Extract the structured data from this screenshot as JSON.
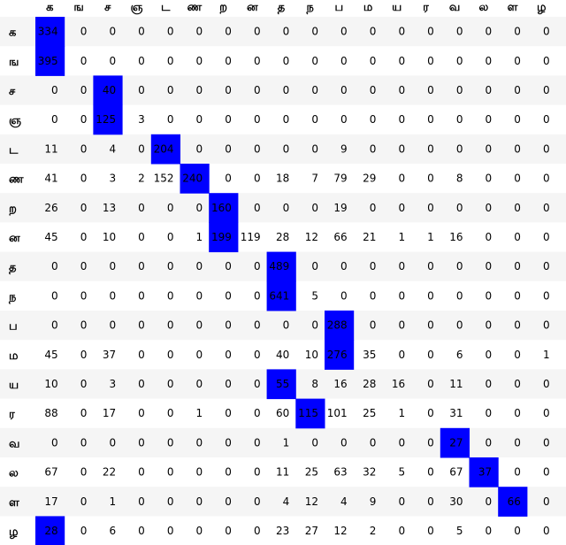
{
  "chart_data": {
    "type": "table",
    "highlight_color": "#0000ff",
    "stripe_color": "#f5f5f5",
    "columns": [
      "க",
      "ங",
      "ச",
      "ஞ",
      "ட",
      "ண",
      "ற",
      "ன",
      "த",
      "ந",
      "ப",
      "ம",
      "ய",
      "ர",
      "வ",
      "ல",
      "ள",
      "ழ"
    ],
    "rows": [
      "க",
      "ங",
      "ச",
      "ஞ",
      "ட",
      "ண",
      "ற",
      "ன",
      "த",
      "ந",
      "ப",
      "ம",
      "ய",
      "ர",
      "வ",
      "ல",
      "ள",
      "ழ"
    ],
    "values": [
      [
        334,
        0,
        0,
        0,
        0,
        0,
        0,
        0,
        0,
        0,
        0,
        0,
        0,
        0,
        0,
        0,
        0,
        0
      ],
      [
        395,
        0,
        0,
        0,
        0,
        0,
        0,
        0,
        0,
        0,
        0,
        0,
        0,
        0,
        0,
        0,
        0,
        0
      ],
      [
        0,
        0,
        40,
        0,
        0,
        0,
        0,
        0,
        0,
        0,
        0,
        0,
        0,
        0,
        0,
        0,
        0,
        0
      ],
      [
        0,
        0,
        125,
        3,
        0,
        0,
        0,
        0,
        0,
        0,
        0,
        0,
        0,
        0,
        0,
        0,
        0,
        0
      ],
      [
        11,
        0,
        4,
        0,
        204,
        0,
        0,
        0,
        0,
        0,
        9,
        0,
        0,
        0,
        0,
        0,
        0,
        0
      ],
      [
        41,
        0,
        3,
        2,
        152,
        240,
        0,
        0,
        18,
        7,
        79,
        29,
        0,
        0,
        8,
        0,
        0,
        0
      ],
      [
        26,
        0,
        13,
        0,
        0,
        0,
        160,
        0,
        0,
        0,
        19,
        0,
        0,
        0,
        0,
        0,
        0,
        0
      ],
      [
        45,
        0,
        10,
        0,
        0,
        1,
        199,
        119,
        28,
        12,
        66,
        21,
        1,
        1,
        16,
        0,
        0,
        0
      ],
      [
        0,
        0,
        0,
        0,
        0,
        0,
        0,
        0,
        489,
        0,
        0,
        0,
        0,
        0,
        0,
        0,
        0,
        0
      ],
      [
        0,
        0,
        0,
        0,
        0,
        0,
        0,
        0,
        641,
        5,
        0,
        0,
        0,
        0,
        0,
        0,
        0,
        0
      ],
      [
        0,
        0,
        0,
        0,
        0,
        0,
        0,
        0,
        0,
        0,
        288,
        0,
        0,
        0,
        0,
        0,
        0,
        0
      ],
      [
        45,
        0,
        37,
        0,
        0,
        0,
        0,
        0,
        40,
        10,
        276,
        35,
        0,
        0,
        6,
        0,
        0,
        1
      ],
      [
        10,
        0,
        3,
        0,
        0,
        0,
        0,
        0,
        55,
        8,
        16,
        28,
        16,
        0,
        11,
        0,
        0,
        0
      ],
      [
        88,
        0,
        17,
        0,
        0,
        1,
        0,
        0,
        60,
        115,
        101,
        25,
        1,
        0,
        31,
        0,
        0,
        0
      ],
      [
        0,
        0,
        0,
        0,
        0,
        0,
        0,
        0,
        1,
        0,
        0,
        0,
        0,
        0,
        27,
        0,
        0,
        0
      ],
      [
        67,
        0,
        22,
        0,
        0,
        0,
        0,
        0,
        11,
        25,
        63,
        32,
        5,
        0,
        67,
        37,
        0,
        0
      ],
      [
        17,
        0,
        1,
        0,
        0,
        0,
        0,
        0,
        4,
        12,
        4,
        9,
        0,
        0,
        30,
        0,
        66,
        0
      ],
      [
        28,
        0,
        6,
        0,
        0,
        0,
        0,
        0,
        23,
        27,
        12,
        2,
        0,
        0,
        5,
        0,
        0,
        0
      ]
    ],
    "highlighted": [
      [
        0,
        0
      ],
      [
        1,
        0
      ],
      [
        2,
        2
      ],
      [
        3,
        2
      ],
      [
        4,
        4
      ],
      [
        5,
        5
      ],
      [
        6,
        6
      ],
      [
        7,
        6
      ],
      [
        8,
        8
      ],
      [
        9,
        8
      ],
      [
        10,
        10
      ],
      [
        11,
        10
      ],
      [
        12,
        8
      ],
      [
        13,
        9
      ],
      [
        14,
        14
      ],
      [
        15,
        15
      ],
      [
        16,
        16
      ],
      [
        17,
        0
      ]
    ]
  }
}
